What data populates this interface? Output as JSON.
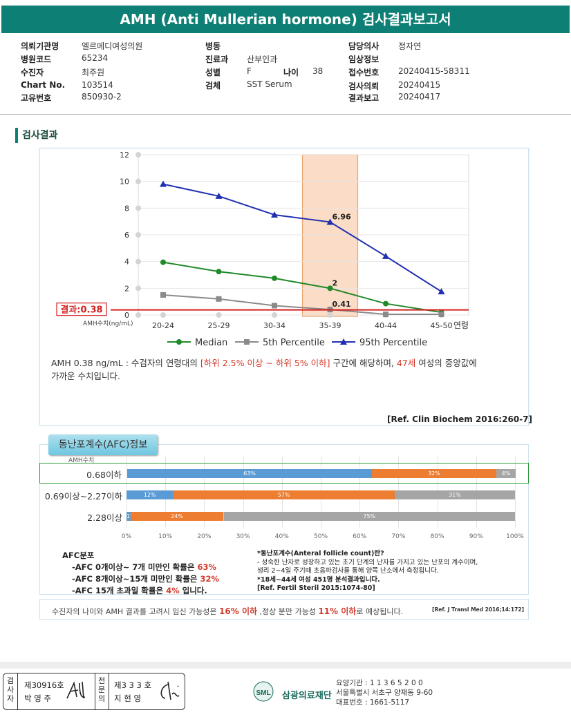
{
  "title": "AMH (Anti Mullerian hormone) 검사결과보고서",
  "info": {
    "col1": [
      {
        "label": "의뢰기관명",
        "value": "엘르메디여성의원"
      },
      {
        "label": "병원코드",
        "value": "65234"
      },
      {
        "label": "수진자",
        "value": "최주원"
      },
      {
        "label": "Chart No.",
        "value": "103514"
      },
      {
        "label": "고유번호",
        "value": "850930-2"
      }
    ],
    "col2": [
      {
        "label": "병동",
        "value": ""
      },
      {
        "label": "진료과",
        "value": "산부인과"
      },
      {
        "label": "성별",
        "value": "F"
      },
      {
        "label": "검체",
        "value": "SST Serum"
      }
    ],
    "age_label": "나이",
    "age_value": "38",
    "col3": [
      {
        "label": "담당의사",
        "value": "정자연"
      },
      {
        "label": "임상정보",
        "value": ""
      },
      {
        "label": "접수번호",
        "value": "20240415-58311"
      },
      {
        "label": "검사의뢰",
        "value": "20240415"
      },
      {
        "label": "결과보고",
        "value": "20240417"
      }
    ]
  },
  "section_title": "검사결과",
  "chart_data": {
    "type": "line",
    "categories": [
      "20-24",
      "25-29",
      "30-34",
      "35-39",
      "40-44",
      "45-50"
    ],
    "xlabel": "연령",
    "ylabel": "AMH수치(ng/mL)",
    "ylim": [
      0,
      12
    ],
    "yticks": [
      "0",
      "2",
      "4",
      "6",
      "8",
      "10",
      "12"
    ],
    "highlight_category": "35-39",
    "series": [
      {
        "name": "Median",
        "color": "#1f8a2a",
        "values": [
          3.95,
          3.25,
          2.75,
          2.0,
          0.85,
          0.2
        ]
      },
      {
        "name": "5th Percentile",
        "color": "#8a8a8a",
        "values": [
          1.5,
          1.2,
          0.7,
          0.41,
          0.05,
          0.05
        ]
      },
      {
        "name": "95th Percentile",
        "color": "#1f2fb0",
        "values": [
          9.8,
          8.9,
          7.5,
          6.96,
          4.4,
          1.75
        ]
      }
    ],
    "point_labels": [
      "6.96",
      "2",
      "0.41"
    ],
    "result_label": "결과:0.38",
    "result_value": 0.38
  },
  "description": {
    "p1": "AMH  0.38 ng/mL : 수검자의 연령대의 ",
    "red1": "[하위 2.5% 이상 ~ 하위 5% 이하]",
    "p2": "  구간에 해당하며, ",
    "red2": "47세",
    "p3": " 여성의 중앙값에",
    "p4": "가까운 수치입니다."
  },
  "ref1": "[Ref. Clin Biochem 2016:260-7]",
  "afc": {
    "title": "동난포계수(AFC)정보",
    "amh_label": "AMH수치",
    "colors": {
      "blue": "#5b9bd5",
      "orange": "#ed7d31",
      "gray": "#a5a5a5"
    },
    "rows": [
      {
        "label": "0.68이하",
        "segments": [
          {
            "pct": 63,
            "text": "63%"
          },
          {
            "pct": 32,
            "text": "32%"
          },
          {
            "pct": 4,
            "text": "4%"
          }
        ]
      },
      {
        "label": "0.69이상~2.27이하",
        "segments": [
          {
            "pct": 12,
            "text": "12%"
          },
          {
            "pct": 57,
            "text": "57%"
          },
          {
            "pct": 31,
            "text": "31%"
          }
        ]
      },
      {
        "label": "2.28이상",
        "segments": [
          {
            "pct": 1,
            "text": "1%"
          },
          {
            "pct": 24,
            "text": "24%"
          },
          {
            "pct": 75,
            "text": "75%"
          }
        ]
      }
    ],
    "axis": [
      "0%",
      "10%",
      "20%",
      "30%",
      "40%",
      "50%",
      "60%",
      "70%",
      "80%",
      "90%",
      "100%"
    ],
    "dist_title": "AFC분포",
    "dist": [
      {
        "pre": "-AFC  0개이상~ 7개 미만인 확률은",
        "val": "63%",
        "post": ""
      },
      {
        "pre": "-AFC  8개이상~15개 미만인 확률은",
        "val": "32%",
        "post": ""
      },
      {
        "pre": "-AFC  15개 초과일 확률은",
        "val": "4%",
        "post": "입니다."
      }
    ],
    "note_title": "*동난포계수(Anteral  follicle  count)란?",
    "note1": "- 성숙한 난자로 성장하고 있는 초기 단계의 난자를 가지고 있는 난포의 계수이며,",
    "note2": "  생리 2~4일 주기때 초음파검사를 통해 양쪽 난소에서 측정됩니다.",
    "note3": "*18세~44세 여성 451명 분석결과입니다.",
    "note4": "[Ref. Fertil Steril 2015:1074-80]"
  },
  "pregnancy": {
    "p1": "수진자의  나이와 AMH 결과를 고려시 임신 가능성은  ",
    "v1": "16% 이하",
    "p2": " ,정상 분만 가능성  ",
    "v2": "11% 이하",
    "p3": "로 예상됩니다.",
    "ref": "[Ref. J Transl Med 2016;14:172]"
  },
  "sign": {
    "v1": "검사자",
    "no1": "제30916호",
    "name1": "박 영 주",
    "v2": "전문의",
    "no2": "제3 3 3 호",
    "name2": "지 현 영"
  },
  "org": {
    "logo_text": "SML",
    "name": "삼광의료재단",
    "line1": "요양기관 : 1 1 3 6 5 2 0 0",
    "line2": "서울특별시 서초구 양재동 9-60",
    "line3": "대표번호 : 1661-5117"
  }
}
